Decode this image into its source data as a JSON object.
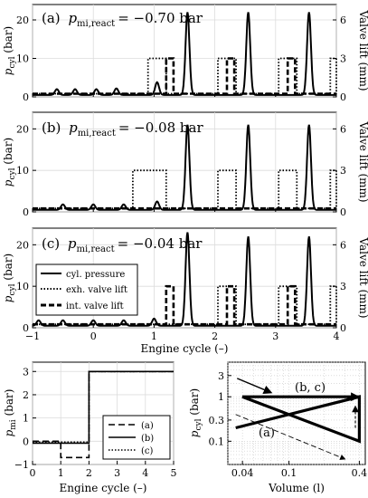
{
  "chart_data": [
    {
      "type": "line",
      "panel_label": "(a)",
      "annotation": {
        "symbol": "p",
        "subscript": "mi,react",
        "value_text": "= −0.70 bar"
      },
      "ylabel_left": {
        "symbol": "p",
        "subscript": "cyl",
        "unit": " (bar)"
      },
      "ylabel_right": "Valve lift (mm)",
      "xlabel": "",
      "xlim": [
        -1,
        4
      ],
      "ylim_left": [
        0,
        24
      ],
      "ylim_right": [
        0,
        7.2
      ],
      "xticks": [
        -1,
        0,
        1,
        2,
        3,
        4
      ],
      "yticks_left": [
        0,
        10,
        20
      ],
      "yticks_right": [
        0,
        3,
        6
      ],
      "grid": true,
      "series": [
        {
          "name": "cyl. pressure",
          "style": "solid",
          "axis": "left",
          "peaks": [
            [
              -0.6,
              2
            ],
            [
              -0.3,
              2
            ],
            [
              0.05,
              2
            ],
            [
              0.38,
              2.2
            ],
            [
              1.05,
              3.8
            ],
            [
              1.55,
              22
            ],
            [
              2.55,
              22
            ],
            [
              3.55,
              22
            ]
          ]
        },
        {
          "name": "exh. valve lift",
          "style": "dotted",
          "axis": "right",
          "open_intervals": [
            [
              0.9,
              1.2
            ],
            [
              2.05,
              2.35
            ],
            [
              3.05,
              3.35
            ],
            [
              3.9,
              4.0
            ]
          ]
        },
        {
          "name": "int. valve lift",
          "style": "dashed",
          "axis": "right",
          "open_intervals": [
            [
              1.2,
              1.32
            ],
            [
              2.2,
              2.32
            ],
            [
              3.2,
              3.32
            ]
          ]
        }
      ]
    },
    {
      "type": "line",
      "panel_label": "(b)",
      "annotation": {
        "symbol": "p",
        "subscript": "mi,react",
        "value_text": "= −0.08 bar"
      },
      "ylabel_left": {
        "symbol": "p",
        "subscript": "cyl",
        "unit": " (bar)"
      },
      "ylabel_right": "Valve lift (mm)",
      "xlabel": "",
      "xlim": [
        -1,
        4
      ],
      "ylim_left": [
        0,
        24
      ],
      "ylim_right": [
        0,
        7.2
      ],
      "xticks": [
        -1,
        0,
        1,
        2,
        3,
        4
      ],
      "yticks_left": [
        0,
        10,
        20
      ],
      "yticks_right": [
        0,
        3,
        6
      ],
      "grid": true,
      "series": [
        {
          "name": "cyl. pressure",
          "style": "solid",
          "axis": "left",
          "peaks": [
            [
              -0.5,
              1.8
            ],
            [
              0.0,
              1.8
            ],
            [
              0.5,
              1.8
            ],
            [
              1.05,
              2.5
            ],
            [
              1.55,
              21
            ],
            [
              2.55,
              21
            ],
            [
              3.55,
              21
            ]
          ]
        },
        {
          "name": "exh. valve lift",
          "style": "dotted",
          "axis": "right",
          "open_intervals": [
            [
              0.65,
              1.2
            ],
            [
              2.05,
              2.35
            ],
            [
              3.05,
              3.35
            ],
            [
              3.9,
              4.0
            ]
          ]
        },
        {
          "name": "int. valve lift",
          "style": "dashed",
          "axis": "right",
          "open_intervals": []
        }
      ]
    },
    {
      "type": "line",
      "panel_label": "(c)",
      "annotation": {
        "symbol": "p",
        "subscript": "mi,react",
        "value_text": "= −0.04 bar"
      },
      "ylabel_left": {
        "symbol": "p",
        "subscript": "cyl",
        "unit": " (bar)"
      },
      "ylabel_right": "Valve lift (mm)",
      "xlabel": "Engine cycle (–)",
      "xlim": [
        -1,
        4
      ],
      "ylim_left": [
        0,
        24
      ],
      "ylim_right": [
        0,
        7.2
      ],
      "xticks": [
        -1,
        0,
        1,
        2,
        3,
        4
      ],
      "yticks_left": [
        0,
        10,
        20
      ],
      "yticks_right": [
        0,
        3,
        6
      ],
      "grid": true,
      "legend": {
        "placement": "top-left",
        "entries": [
          "cyl. pressure",
          "exh. valve lift",
          "int. valve lift"
        ]
      },
      "series": [
        {
          "name": "cyl. pressure",
          "style": "solid",
          "axis": "left",
          "peaks": [
            [
              -0.9,
              1.8
            ],
            [
              -0.5,
              1.8
            ],
            [
              0.0,
              1.8
            ],
            [
              0.5,
              1.8
            ],
            [
              1.0,
              2.2
            ],
            [
              1.55,
              23
            ],
            [
              2.55,
              22
            ],
            [
              3.55,
              22
            ]
          ]
        },
        {
          "name": "exh. valve lift",
          "style": "dotted",
          "axis": "right",
          "open_intervals": [
            [
              2.05,
              2.35
            ],
            [
              3.05,
              3.35
            ],
            [
              3.9,
              4.0
            ]
          ]
        },
        {
          "name": "int. valve lift",
          "style": "dashed",
          "axis": "right",
          "open_intervals": [
            [
              1.2,
              1.32
            ],
            [
              2.2,
              2.32
            ],
            [
              3.2,
              3.32
            ]
          ]
        }
      ]
    },
    {
      "type": "line",
      "ylabel": {
        "symbol": "p",
        "subscript": "mi",
        "unit": " (bar)"
      },
      "xlabel": "Engine cycle (–)",
      "xlim": [
        0,
        5
      ],
      "ylim": [
        -1,
        3.4
      ],
      "xticks": [
        0,
        1,
        2,
        3,
        4,
        5
      ],
      "yticks": [
        -1,
        0,
        1,
        2,
        3
      ],
      "grid": true,
      "legend": {
        "placement": "bottom-right",
        "entries": [
          "(a)",
          "(b)",
          "(c)"
        ]
      },
      "series": [
        {
          "name": "(a)",
          "style": "dashed",
          "x": [
            0,
            1,
            1,
            2,
            2,
            5
          ],
          "y": [
            0,
            0,
            -0.7,
            -0.7,
            3,
            3
          ]
        },
        {
          "name": "(b)",
          "style": "solid",
          "x": [
            0,
            2,
            2,
            5
          ],
          "y": [
            -0.08,
            -0.08,
            3,
            3
          ]
        },
        {
          "name": "(c)",
          "style": "dotted",
          "x": [
            0,
            2,
            2,
            5
          ],
          "y": [
            -0.04,
            -0.04,
            3,
            3
          ]
        }
      ]
    },
    {
      "type": "line",
      "ylabel": {
        "symbol": "p",
        "subscript": "cyl",
        "unit": " (bar)"
      },
      "xlabel": "Volume (l)",
      "xscale": "log",
      "yscale": "log",
      "xlim": [
        0.03,
        0.45
      ],
      "ylim": [
        0.03,
        6
      ],
      "xticks": [
        0.04,
        0.1,
        0.4
      ],
      "yticks": [
        0.1,
        0.3,
        1,
        3
      ],
      "grid": true,
      "annotations": [
        "(b, c)",
        "(a)"
      ],
      "series": [
        {
          "name": "(b, c)",
          "style": "solid",
          "x": [
            0.035,
            0.4,
            0.4,
            0.04,
            0.4
          ],
          "y": [
            0.2,
            1.0,
            0.1,
            1.0,
            1.0
          ]
        },
        {
          "name": "(a)",
          "style": "dashed",
          "x": [
            0.035,
            0.3
          ],
          "y": [
            0.4,
            0.04
          ]
        }
      ]
    }
  ]
}
